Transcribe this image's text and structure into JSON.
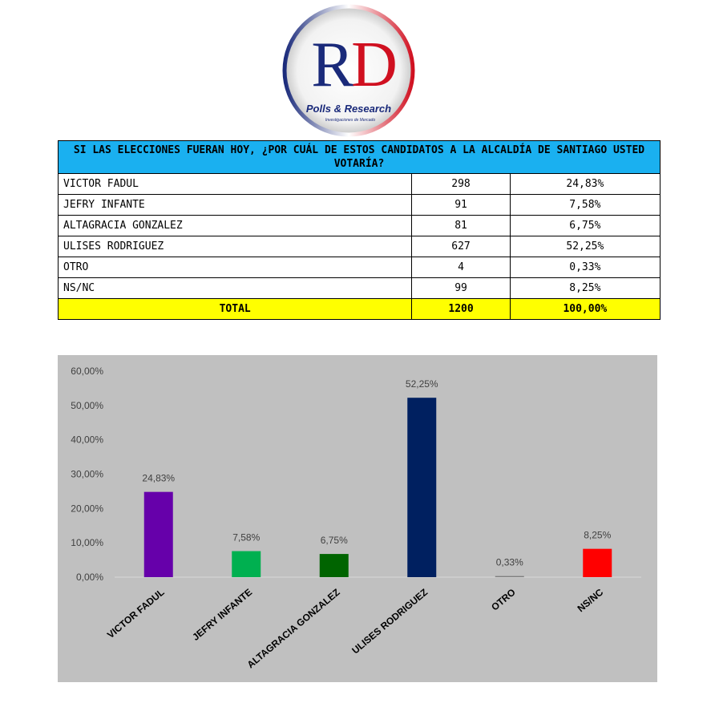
{
  "logo": {
    "letters": [
      "R",
      "D"
    ],
    "name": "Polls & Research",
    "tagline": "Investigaciones de Mercado"
  },
  "table": {
    "title": "SI LAS ELECCIONES FUERAN HOY, ¿POR CUÁL DE ESTOS CANDIDATOS A LA ALCALDÍA DE SANTIAGO USTED VOTARÍA?",
    "rows": [
      [
        "VICTOR FADUL",
        "298",
        "24,83%"
      ],
      [
        "JEFRY INFANTE",
        "91",
        "7,58%"
      ],
      [
        "ALTAGRACIA GONZALEZ",
        "81",
        "6,75%"
      ],
      [
        "ULISES RODRIGUEZ",
        "627",
        "52,25%"
      ],
      [
        "OTRO",
        "4",
        "0,33%"
      ],
      [
        "NS/NC",
        "99",
        "8,25%"
      ]
    ],
    "total": [
      "TOTAL",
      "1200",
      "100,00%"
    ]
  },
  "chart_data": {
    "type": "bar",
    "categories": [
      "VICTOR FADUL",
      "JEFRY INFANTE",
      "ALTAGRACIA GONZALEZ",
      "ULISES RODRIGUEZ",
      "OTRO",
      "NS/NC"
    ],
    "values": [
      24.83,
      7.58,
      6.75,
      52.25,
      0.33,
      8.25
    ],
    "value_labels": [
      "24,83%",
      "7,58%",
      "6,75%",
      "52,25%",
      "0,33%",
      "8,25%"
    ],
    "colors": [
      "#6600aa",
      "#00b050",
      "#006400",
      "#002060",
      "#808080",
      "#ff0000"
    ],
    "ylim": [
      0,
      60
    ],
    "yticks": [
      {
        "value": 0,
        "label": "0,00%"
      },
      {
        "value": 10,
        "label": "10,00%"
      },
      {
        "value": 20,
        "label": "20,00%"
      },
      {
        "value": 30,
        "label": "30,00%"
      },
      {
        "value": 40,
        "label": "40,00%"
      },
      {
        "value": 50,
        "label": "50,00%"
      },
      {
        "value": 60,
        "label": "60,00%"
      }
    ],
    "background": "#c0c0c0"
  }
}
